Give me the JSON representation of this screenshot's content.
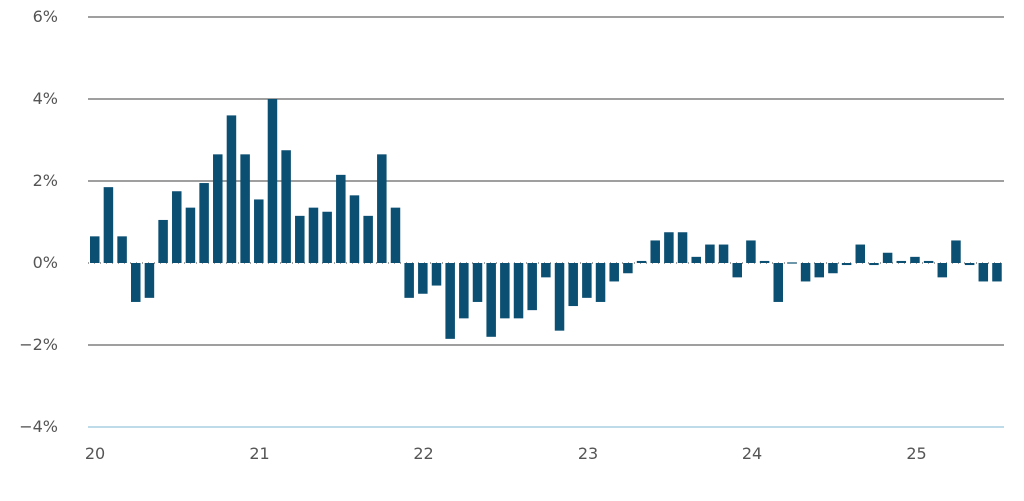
{
  "chart_data": {
    "type": "bar",
    "x_tick_labels": [
      "20",
      "21",
      "22",
      "23",
      "24",
      "25"
    ],
    "y_ticks": [
      6,
      4,
      2,
      0,
      -2,
      -4
    ],
    "y_tick_labels": [
      "6%",
      "4%",
      "2%",
      "0%",
      "−2%",
      "−4%"
    ],
    "ylim": [
      -4,
      6
    ],
    "grid": true,
    "bar_color": "#0b4f72",
    "gridline_color": "#666666",
    "baseline_color": "#a9cfe2",
    "values": [
      0.65,
      1.85,
      0.65,
      -0.95,
      -0.85,
      1.05,
      1.75,
      1.35,
      1.95,
      2.65,
      3.6,
      2.65,
      1.55,
      4.0,
      2.75,
      1.15,
      1.35,
      1.25,
      2.15,
      1.65,
      1.15,
      2.65,
      1.35,
      -0.85,
      -0.75,
      -0.55,
      -1.85,
      -1.35,
      -0.95,
      -1.8,
      -1.35,
      -1.35,
      -1.15,
      -0.35,
      -1.65,
      -1.05,
      -0.85,
      -0.95,
      -0.45,
      -0.25,
      0.05,
      0.55,
      0.75,
      0.75,
      0.15,
      0.45,
      0.45,
      -0.35,
      0.55,
      0.05,
      -0.95,
      0.0,
      -0.45,
      -0.35,
      -0.25,
      -0.05,
      0.45,
      -0.05,
      0.25,
      0.05,
      0.15,
      0.05,
      -0.35,
      0.55,
      -0.05,
      -0.45,
      -0.45
    ]
  }
}
